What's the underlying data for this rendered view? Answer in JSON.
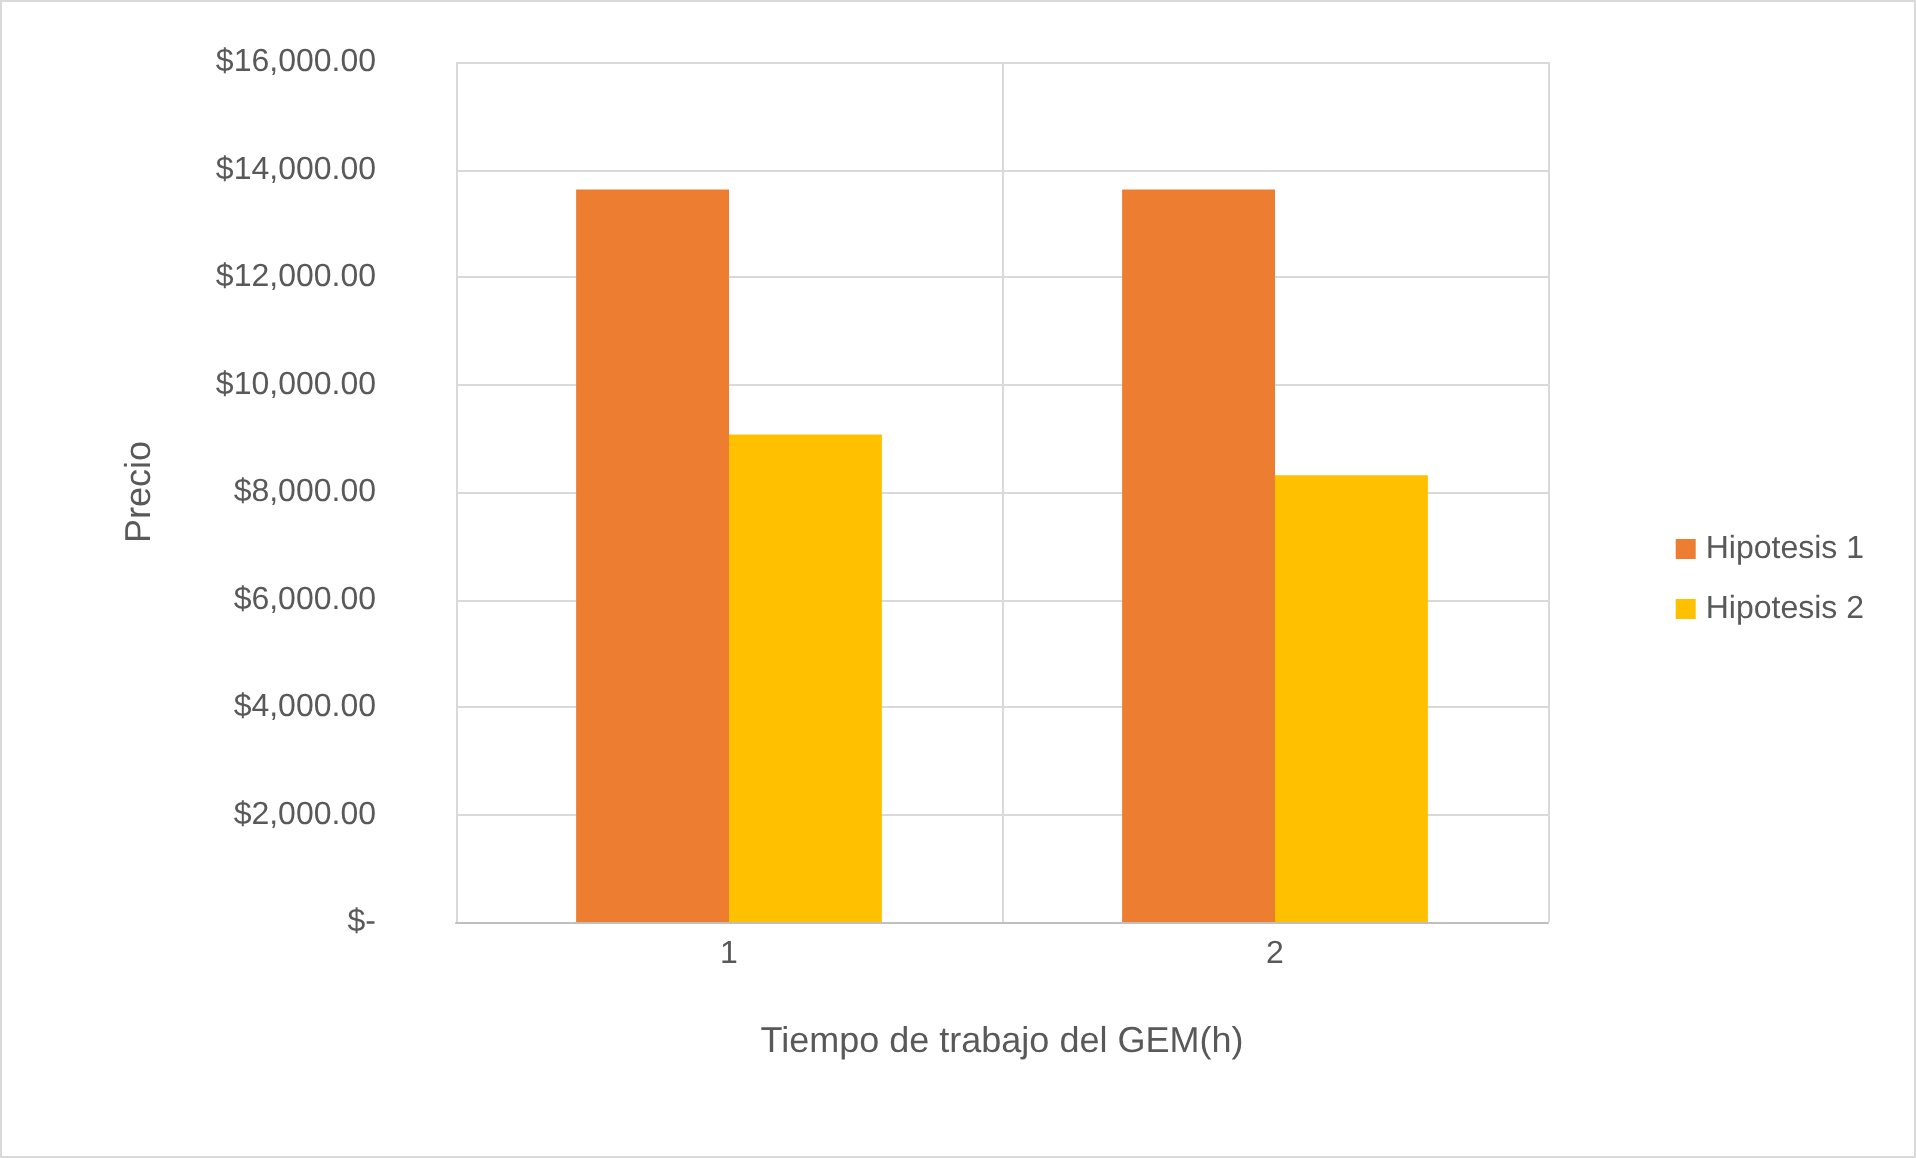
{
  "chart_data": {
    "type": "bar",
    "xlabel": "Tiempo de trabajo del GEM(h)",
    "ylabel": "Precio",
    "categories": [
      "1",
      "2"
    ],
    "series": [
      {
        "name": "Hipotesis 1",
        "color": "#ed7d31",
        "values": [
          13630,
          13630
        ]
      },
      {
        "name": "Hipotesis 2",
        "color": "#ffc000",
        "values": [
          9070,
          8310
        ]
      }
    ],
    "ylim": [
      0,
      16000
    ],
    "yticks": [
      {
        "value": 0,
        "label": "$-"
      },
      {
        "value": 2000,
        "label": "$2,000.00"
      },
      {
        "value": 4000,
        "label": "$4,000.00"
      },
      {
        "value": 6000,
        "label": "$6,000.00"
      },
      {
        "value": 8000,
        "label": "$8,000.00"
      },
      {
        "value": 10000,
        "label": "$10,000.00"
      },
      {
        "value": 12000,
        "label": "$12,000.00"
      },
      {
        "value": 14000,
        "label": "$14,000.00"
      },
      {
        "value": 16000,
        "label": "$16,000.00"
      }
    ],
    "grid": true,
    "legend": "right"
  }
}
